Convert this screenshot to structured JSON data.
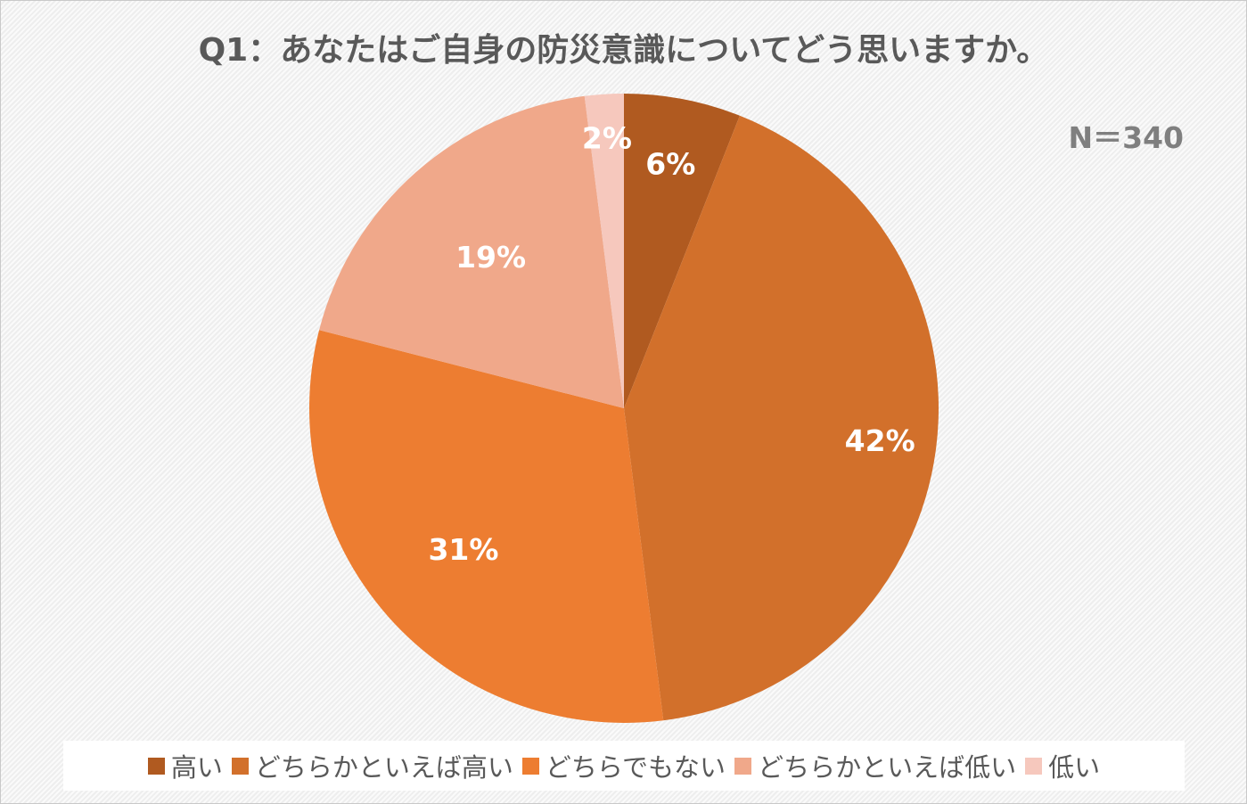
{
  "chart_data": {
    "type": "pie",
    "title": "Q1：あなたはご自身の防災意識についてどう思いますか。",
    "annotation": "N＝340",
    "categories": [
      "高い",
      "どちらかといえば高い",
      "どちらでもない",
      "どちらかといえば低い",
      "低い"
    ],
    "values": [
      6,
      42,
      31,
      19,
      2
    ],
    "data_labels": [
      "6%",
      "42%",
      "31%",
      "19%",
      "2%"
    ],
    "colors": [
      "#B05A20",
      "#D2702B",
      "#ED7D31",
      "#F0A88A",
      "#F6C8BD"
    ],
    "legend_position": "bottom",
    "start_angle": "12 o'clock",
    "direction": "clockwise"
  }
}
